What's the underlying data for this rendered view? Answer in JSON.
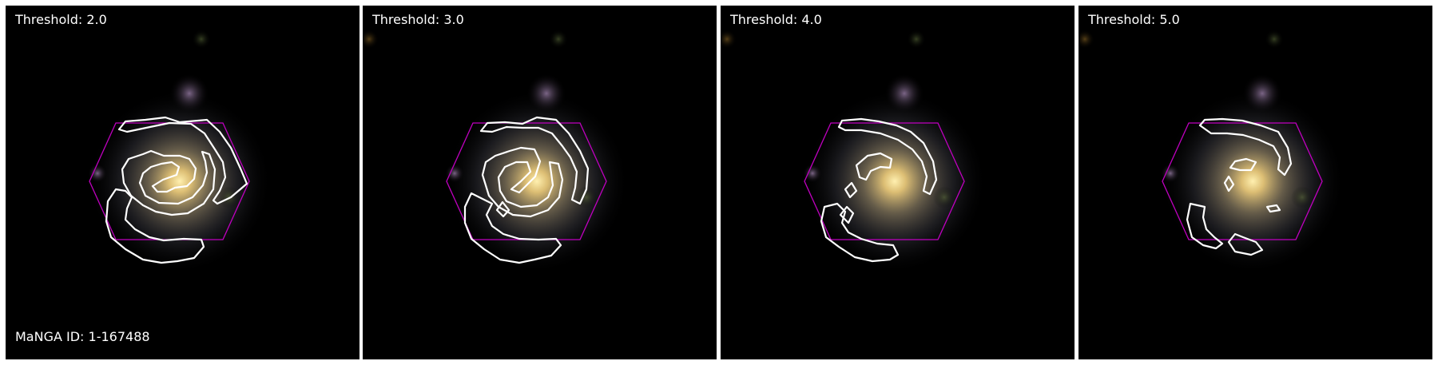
{
  "galaxy_id_label": "MaNGA ID: 1-167488",
  "panels": [
    {
      "title": "Threshold: 2.0"
    },
    {
      "title": "Threshold: 3.0"
    },
    {
      "title": "Threshold: 4.0"
    },
    {
      "title": "Threshold: 5.0"
    }
  ],
  "colors": {
    "background": "#000000",
    "contour": "#ffffff",
    "ifu_hexagon": "#c000c0",
    "galaxy_core": "#f2d27a",
    "galaxy_halo": "#8a7f6a"
  }
}
